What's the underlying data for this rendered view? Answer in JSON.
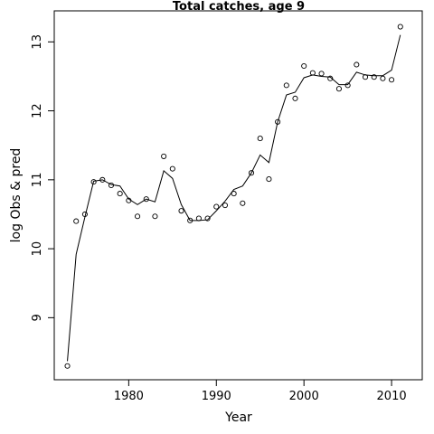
{
  "chart_data": {
    "type": "scatter",
    "title": "Total catches, age 9",
    "xlabel": "Year",
    "ylabel": "log Obs & pred",
    "xlim": [
      1971.5,
      2013.5
    ],
    "ylim": [
      8.1,
      13.45
    ],
    "x_ticks": [
      1980,
      1990,
      2000,
      2010
    ],
    "y_ticks": [
      9,
      10,
      11,
      12,
      13
    ],
    "x_tick_labels": [
      "1980",
      "1990",
      "2000",
      "2010"
    ],
    "y_tick_labels": [
      "9",
      "10",
      "11",
      "12",
      "13"
    ],
    "grid": false,
    "legend": "none",
    "series": [
      {
        "style": "points",
        "marker": "open-circle",
        "x": [
          1973,
          1974,
          1975,
          1976,
          1977,
          1978,
          1979,
          1980,
          1981,
          1982,
          1983,
          1984,
          1985,
          1986,
          1987,
          1988,
          1989,
          1990,
          1991,
          1992,
          1993,
          1994,
          1995,
          1996,
          1997,
          1998,
          1999,
          2000,
          2001,
          2002,
          2003,
          2004,
          2005,
          2006,
          2007,
          2008,
          2009,
          2010,
          2011
        ],
        "y": [
          8.3,
          10.4,
          10.5,
          10.97,
          11.0,
          10.92,
          10.8,
          10.7,
          10.47,
          10.72,
          10.47,
          11.34,
          11.16,
          10.55,
          10.41,
          10.44,
          10.44,
          10.61,
          10.63,
          10.8,
          10.66,
          11.1,
          11.6,
          11.01,
          11.84,
          12.37,
          12.18,
          12.65,
          12.55,
          12.54,
          12.47,
          12.32,
          12.37,
          12.67,
          12.49,
          12.49,
          12.47,
          12.45,
          13.22
        ]
      },
      {
        "style": "line",
        "x": [
          1973,
          1974,
          1975,
          1976,
          1977,
          1978,
          1979,
          1980,
          1981,
          1982,
          1983,
          1984,
          1985,
          1986,
          1987,
          1988,
          1989,
          1990,
          1991,
          1992,
          1993,
          1994,
          1995,
          1996,
          1997,
          1998,
          1999,
          2000,
          2001,
          2002,
          2003,
          2004,
          2005,
          2006,
          2007,
          2008,
          2009,
          2010,
          2011
        ],
        "y": [
          8.37,
          9.92,
          10.46,
          10.98,
          11.0,
          10.93,
          10.91,
          10.72,
          10.64,
          10.72,
          10.68,
          11.13,
          11.02,
          10.64,
          10.41,
          10.41,
          10.42,
          10.55,
          10.69,
          10.86,
          10.91,
          11.1,
          11.36,
          11.25,
          11.84,
          12.23,
          12.27,
          12.48,
          12.52,
          12.5,
          12.49,
          12.38,
          12.38,
          12.56,
          12.52,
          12.51,
          12.51,
          12.59,
          13.1
        ]
      }
    ],
    "colors": {
      "points": "#000000",
      "line": "#000000",
      "frame": "#000000"
    }
  }
}
